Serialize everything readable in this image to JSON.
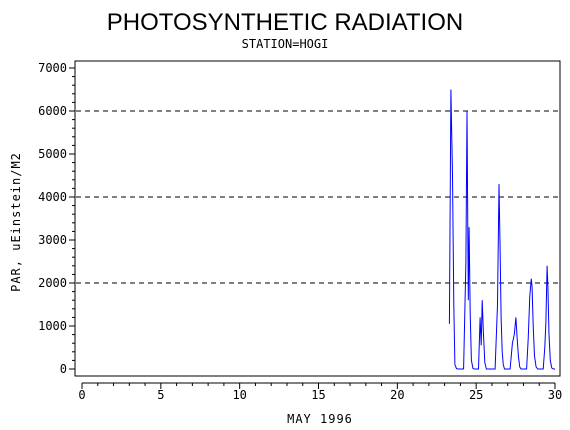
{
  "chart_data": {
    "type": "line",
    "title": "PHOTOSYNTHETIC RADIATION",
    "subtitle": "STATION=HOGI",
    "xlabel": "MAY 1996",
    "ylabel": "PAR, uEinstein/M2",
    "xlim": [
      0,
      30
    ],
    "ylim": [
      0,
      7000
    ],
    "xticks": [
      0,
      5,
      10,
      15,
      20,
      25,
      30
    ],
    "yticks": [
      0,
      1000,
      2000,
      3000,
      4000,
      5000,
      6000,
      7000
    ],
    "reference_lines_y": [
      2000,
      4000,
      6000
    ],
    "line_color": "#0000ff",
    "series": [
      {
        "x": [
          23.3,
          23.4,
          23.5,
          23.58,
          23.65,
          23.75,
          23.85,
          24.0,
          24.2,
          24.35,
          24.42,
          24.5,
          24.55,
          24.62,
          24.7,
          24.8,
          24.9,
          25.0,
          25.15,
          25.25,
          25.32,
          25.38,
          25.45,
          25.55,
          25.65,
          25.8,
          26.0,
          26.2,
          26.35,
          26.45,
          26.52,
          26.58,
          26.65,
          26.72,
          26.8,
          26.9,
          27.0,
          27.15,
          27.3,
          27.42,
          27.52,
          27.6,
          27.68,
          27.76,
          27.85,
          28.0,
          28.2,
          28.3,
          28.4,
          28.5,
          28.55,
          28.62,
          28.7,
          28.8,
          28.9,
          29.0,
          29.15,
          29.25,
          29.35,
          29.42,
          29.5,
          29.55,
          29.62,
          29.7,
          29.8,
          29.9,
          30.0
        ],
        "y": [
          1050,
          6500,
          4500,
          1500,
          100,
          10,
          0,
          0,
          0,
          2500,
          6000,
          1600,
          3300,
          1300,
          200,
          10,
          0,
          0,
          0,
          1200,
          550,
          1600,
          900,
          150,
          0,
          0,
          0,
          0,
          1500,
          4300,
          2800,
          1200,
          400,
          100,
          0,
          0,
          0,
          0,
          600,
          800,
          1200,
          700,
          300,
          50,
          0,
          0,
          0,
          700,
          1700,
          2100,
          1900,
          1000,
          300,
          50,
          0,
          0,
          0,
          0,
          500,
          1100,
          2400,
          1900,
          800,
          200,
          20,
          0,
          0
        ]
      }
    ]
  }
}
